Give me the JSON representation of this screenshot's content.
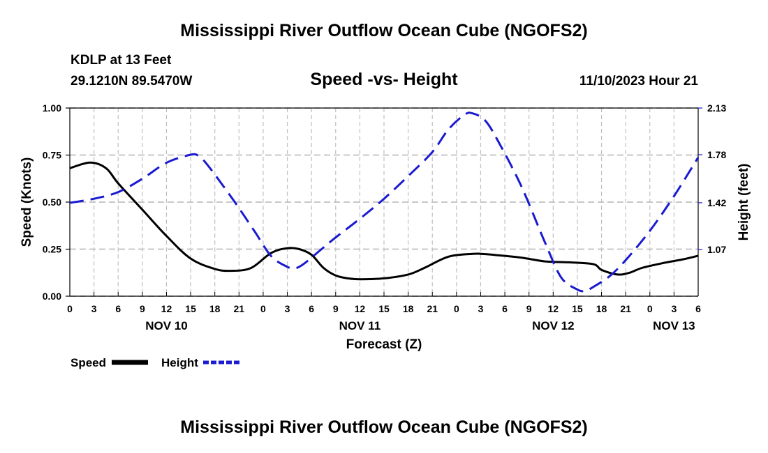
{
  "header": {
    "title": "Mississippi River Outflow Ocean Cube (NGOFS2)",
    "station": "KDLP at 13 Feet",
    "location": "29.1210N  89.5470W",
    "datetime": "11/10/2023 Hour 21"
  },
  "footer": {
    "title": "Mississippi River Outflow Ocean Cube (NGOFS2)"
  },
  "chart_data": {
    "type": "line",
    "title": "Speed -vs- Height",
    "xlabel": "Forecast (Z)",
    "ylabel": "Speed (Knots)",
    "ylabel_right": "Height (feet)",
    "xlim": [
      0,
      78
    ],
    "ylim": [
      0,
      1.0
    ],
    "ylim_right": [
      0.72,
      2.13
    ],
    "grid": true,
    "x_ticks": [
      0,
      3,
      6,
      9,
      12,
      15,
      18,
      21,
      24,
      27,
      30,
      33,
      36,
      39,
      42,
      45,
      48,
      51,
      54,
      57,
      60,
      63,
      66,
      69,
      72,
      75,
      78
    ],
    "x_tick_labels": [
      "0",
      "3",
      "6",
      "9",
      "12",
      "15",
      "18",
      "21",
      "0",
      "3",
      "6",
      "9",
      "12",
      "15",
      "18",
      "21",
      "0",
      "3",
      "6",
      "9",
      "12",
      "15",
      "18",
      "21",
      "0",
      "3",
      "6"
    ],
    "date_labels": [
      {
        "x": 12,
        "label": "NOV 10"
      },
      {
        "x": 36,
        "label": "NOV 11"
      },
      {
        "x": 60,
        "label": "NOV 12"
      },
      {
        "x": 75,
        "label": "NOV 13"
      }
    ],
    "y_ticks": [
      0.0,
      0.25,
      0.5,
      0.75,
      1.0
    ],
    "y_tick_labels": [
      "0.00",
      "0.25",
      "0.50",
      "0.75",
      "1.00"
    ],
    "y_ticks_right": [
      1.07,
      1.42,
      1.78,
      2.13
    ],
    "y_tick_labels_right": [
      "1.07",
      "1.42",
      "1.78",
      "2.13"
    ],
    "legend": {
      "position": "bottom-left"
    },
    "series": [
      {
        "name": "Speed",
        "axis": "left",
        "color": "#000000",
        "dash": "solid",
        "x": [
          0,
          2.5,
          4.5,
          6,
          9,
          12,
          15,
          18,
          20,
          22.5,
          25,
          27,
          28.5,
          30,
          31.5,
          33,
          34.5,
          36,
          39,
          42,
          44,
          47,
          50,
          51,
          53,
          56,
          59,
          62,
          65,
          66,
          68,
          69.5,
          71,
          73.5,
          76,
          78
        ],
        "y": [
          0.68,
          0.71,
          0.68,
          0.6,
          0.46,
          0.32,
          0.2,
          0.145,
          0.135,
          0.15,
          0.23,
          0.255,
          0.25,
          0.22,
          0.15,
          0.11,
          0.095,
          0.09,
          0.095,
          0.115,
          0.15,
          0.21,
          0.225,
          0.225,
          0.218,
          0.205,
          0.185,
          0.18,
          0.17,
          0.14,
          0.115,
          0.125,
          0.15,
          0.175,
          0.195,
          0.215
        ]
      },
      {
        "name": "Height",
        "axis": "right",
        "color": "#1a1ad0",
        "dash": "dashed",
        "x": [
          0,
          3,
          6,
          9,
          12,
          15,
          16,
          17,
          19,
          21,
          23,
          25,
          27,
          28,
          29,
          31,
          33,
          36,
          39,
          42,
          45,
          47,
          49,
          50,
          51.5,
          53,
          56,
          59,
          61,
          63,
          64,
          65,
          67,
          69,
          72,
          75,
          78
        ],
        "y": [
          1.42,
          1.45,
          1.5,
          1.6,
          1.72,
          1.78,
          1.77,
          1.71,
          1.55,
          1.38,
          1.2,
          1.02,
          0.94,
          0.93,
          0.96,
          1.06,
          1.16,
          1.3,
          1.45,
          1.62,
          1.8,
          1.97,
          2.08,
          2.09,
          2.04,
          1.9,
          1.55,
          1.12,
          0.86,
          0.77,
          0.76,
          0.79,
          0.87,
          0.99,
          1.21,
          1.47,
          1.76
        ]
      }
    ]
  }
}
